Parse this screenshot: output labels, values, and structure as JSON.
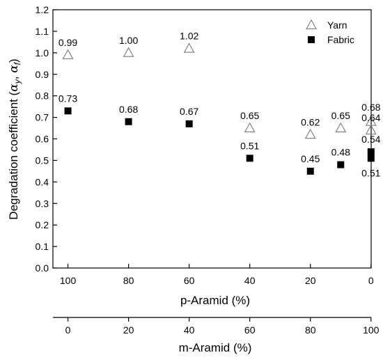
{
  "chart_data": {
    "type": "scatter",
    "ylabel": "Degradation coefficient (αy, αf)",
    "ylabel_main": "Degradation coefficient (",
    "ylabel_sym1": "α",
    "ylabel_sub1": "y",
    "ylabel_comma": ", ",
    "ylabel_sym2": "α",
    "ylabel_sub2": "f",
    "ylabel_close": ")",
    "xlabel": "p-Aramid (%)",
    "xlabel2": "m-Aramid (%)",
    "xlim": [
      0,
      105
    ],
    "ylim": [
      0,
      1.2
    ],
    "yticks": [
      "0.0",
      "0.1",
      "0.2",
      "0.3",
      "0.4",
      "0.5",
      "0.6",
      "0.7",
      "0.8",
      "0.9",
      "1.0",
      "1.1",
      "1.2"
    ],
    "xticks": [
      {
        "p": 100,
        "label": "100"
      },
      {
        "p": 80,
        "label": "80"
      },
      {
        "p": 60,
        "label": "60"
      },
      {
        "p": 40,
        "label": "40"
      },
      {
        "p": 20,
        "label": "20"
      },
      {
        "p": 0,
        "label": "0"
      }
    ],
    "xticks2": [
      {
        "p": 100,
        "label": "0"
      },
      {
        "p": 80,
        "label": "20"
      },
      {
        "p": 60,
        "label": "40"
      },
      {
        "p": 40,
        "label": "60"
      },
      {
        "p": 20,
        "label": "80"
      },
      {
        "p": 0,
        "label": "100"
      }
    ],
    "legend_position": "top-right",
    "series": [
      {
        "name": "Yarn",
        "marker": "open-triangle",
        "color": "#7a7a7a",
        "points": [
          {
            "x": 100,
            "y": 0.99,
            "label": "0.99",
            "pos": "above"
          },
          {
            "x": 80,
            "y": 1.0,
            "label": "1.00",
            "pos": "above"
          },
          {
            "x": 60,
            "y": 1.02,
            "label": "1.02",
            "pos": "above"
          },
          {
            "x": 40,
            "y": 0.65,
            "label": "0.65",
            "pos": "above"
          },
          {
            "x": 20,
            "y": 0.62,
            "label": "0.62",
            "pos": "above"
          },
          {
            "x": 10,
            "y": 0.65,
            "label": "0.65",
            "pos": "above"
          },
          {
            "x": 0,
            "y": 0.68,
            "label": "0.68",
            "pos": "above-high"
          },
          {
            "x": 0,
            "y": 0.64,
            "label": "0.64",
            "pos": "above"
          }
        ]
      },
      {
        "name": "Fabric",
        "marker": "filled-square",
        "color": "#000000",
        "points": [
          {
            "x": 100,
            "y": 0.73,
            "label": "0.73",
            "pos": "above"
          },
          {
            "x": 80,
            "y": 0.68,
            "label": "0.68",
            "pos": "above"
          },
          {
            "x": 60,
            "y": 0.67,
            "label": "0.67",
            "pos": "above"
          },
          {
            "x": 40,
            "y": 0.51,
            "label": "0.51",
            "pos": "above"
          },
          {
            "x": 20,
            "y": 0.45,
            "label": "0.45",
            "pos": "above"
          },
          {
            "x": 10,
            "y": 0.48,
            "label": "0.48",
            "pos": "above"
          },
          {
            "x": 0,
            "y": 0.54,
            "label": "0.54",
            "pos": "above"
          },
          {
            "x": 0,
            "y": 0.51,
            "label": "0.51",
            "pos": "below"
          }
        ]
      }
    ]
  }
}
